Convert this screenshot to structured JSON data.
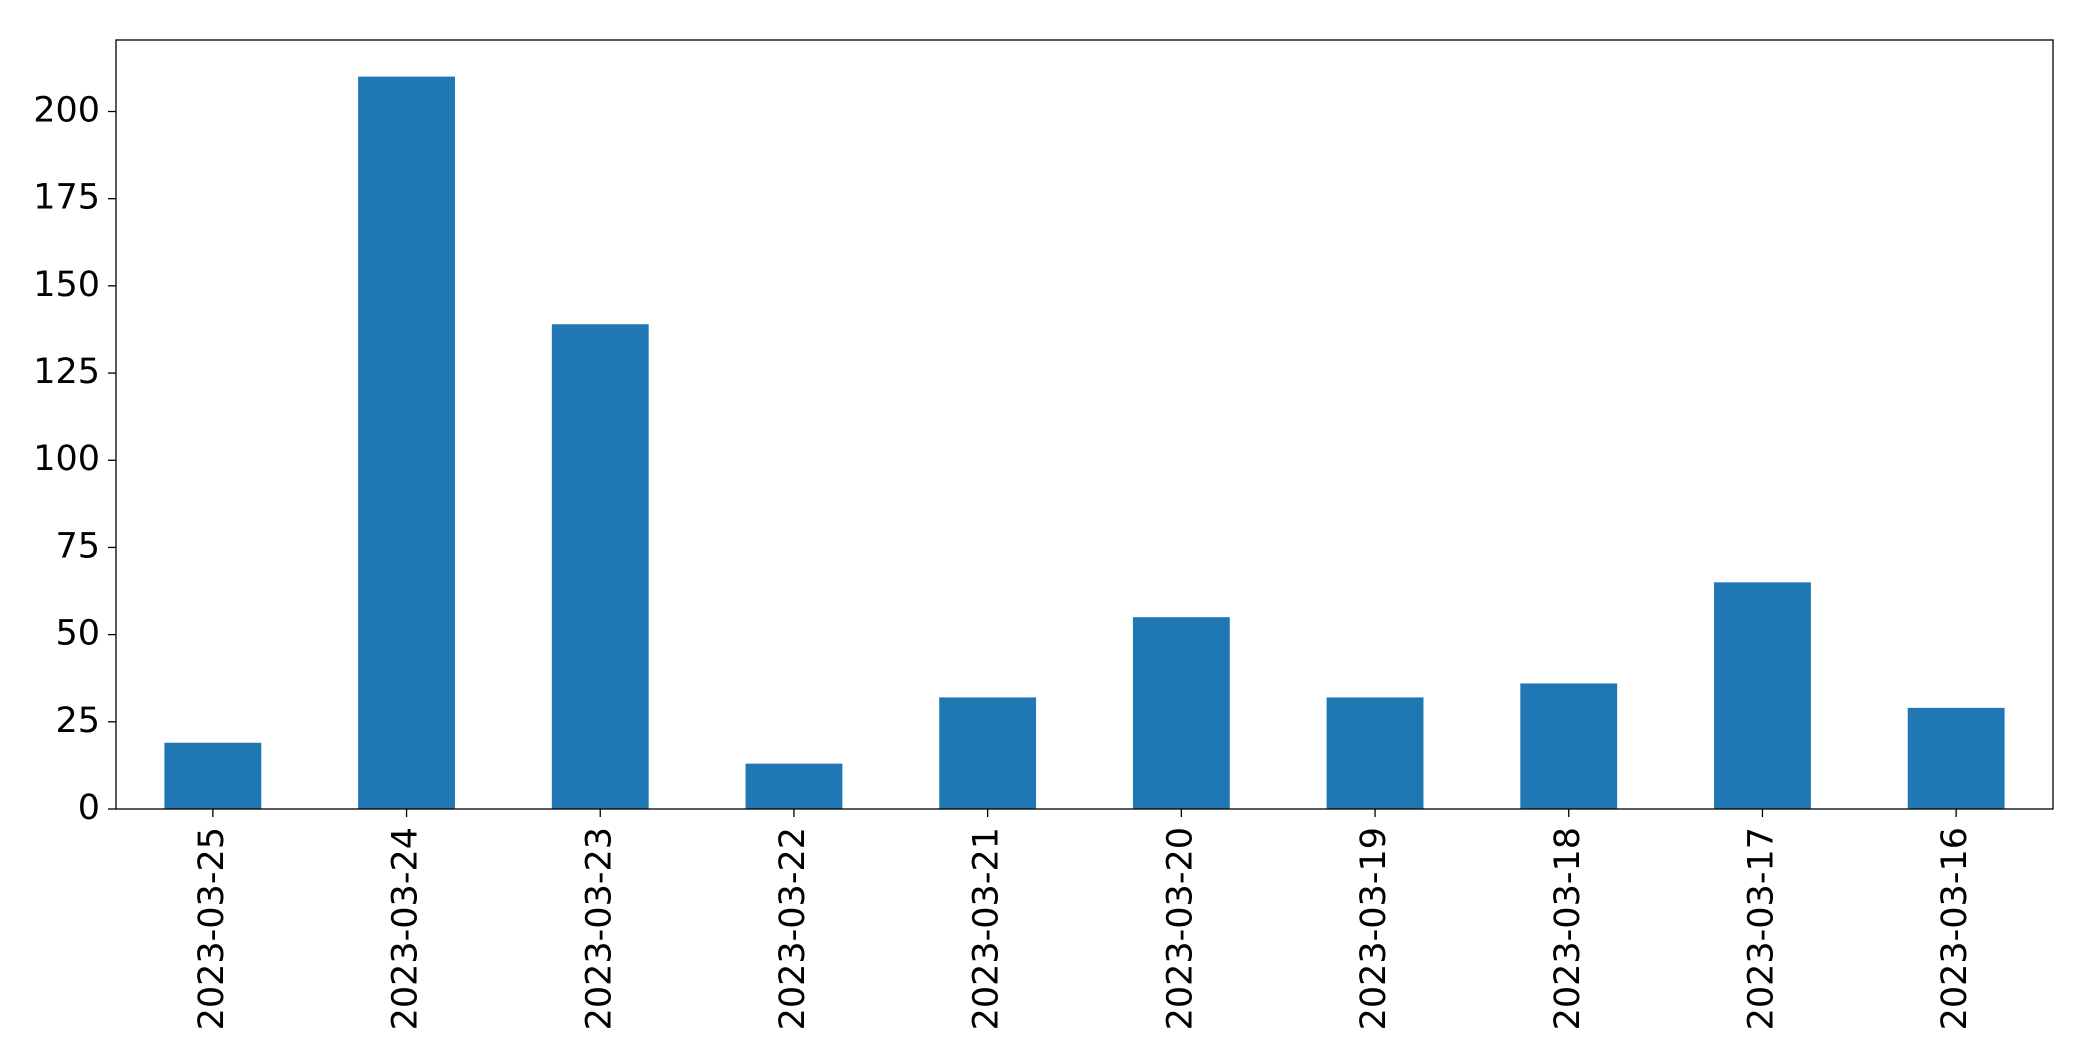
{
  "chart_data": {
    "type": "bar",
    "categories": [
      "2023-03-25",
      "2023-03-24",
      "2023-03-23",
      "2023-03-22",
      "2023-03-21",
      "2023-03-20",
      "2023-03-19",
      "2023-03-18",
      "2023-03-17",
      "2023-03-16"
    ],
    "values": [
      19,
      210,
      139,
      13,
      32,
      55,
      32,
      36,
      65,
      29
    ],
    "color": "#1f77b4",
    "ylim": [
      0,
      220.5
    ],
    "yticks": [
      0,
      25,
      50,
      75,
      100,
      125,
      150,
      175,
      200
    ],
    "grid": false
  }
}
